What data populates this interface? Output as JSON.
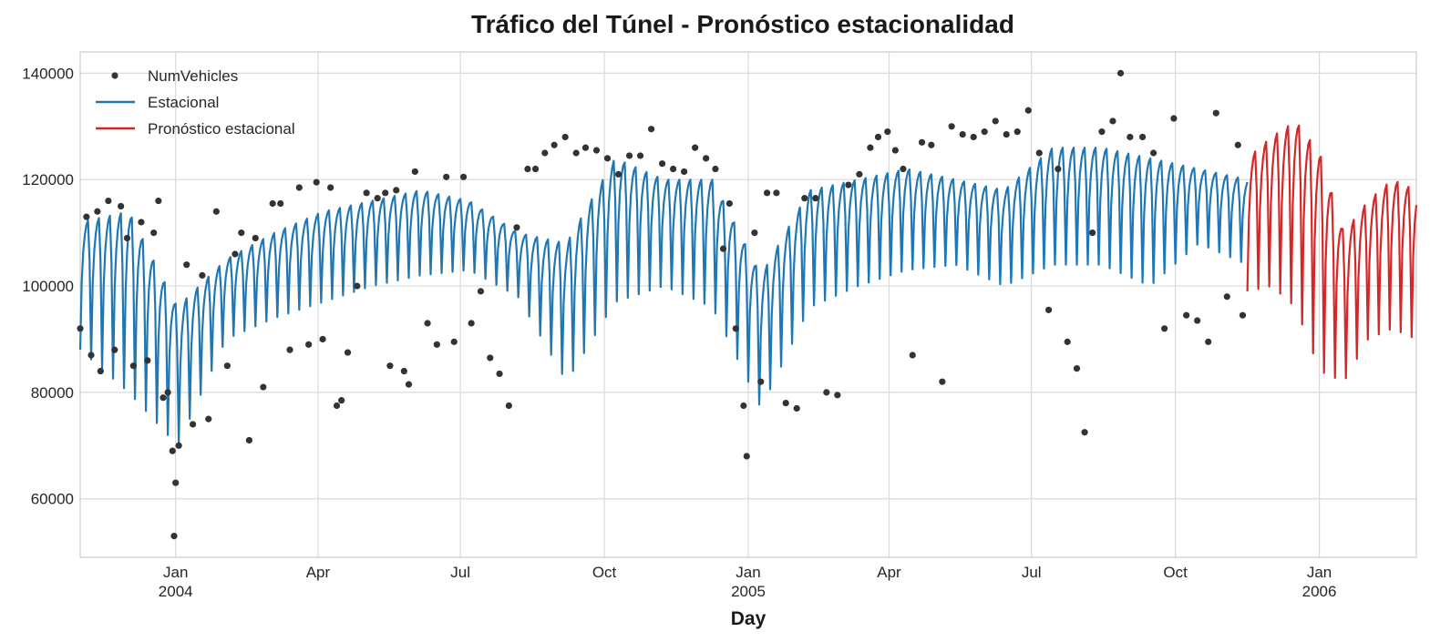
{
  "chart_data": {
    "type": "line",
    "title": "Tráfico del Túnel - Pronóstico estacionalidad",
    "xlabel": "Day",
    "ylabel": "",
    "xlim": [
      "2003-11-01",
      "2006-03-04"
    ],
    "ylim": [
      49000,
      144000
    ],
    "grid": true,
    "legend_position": "top-left",
    "x_ticks": [
      {
        "date": "2004-01-01",
        "label": "Jan",
        "year": "2004"
      },
      {
        "date": "2004-04-01",
        "label": "Apr",
        "year": ""
      },
      {
        "date": "2004-07-01",
        "label": "Jul",
        "year": ""
      },
      {
        "date": "2004-10-01",
        "label": "Oct",
        "year": ""
      },
      {
        "date": "2005-01-01",
        "label": "Jan",
        "year": "2005"
      },
      {
        "date": "2005-04-01",
        "label": "Apr",
        "year": ""
      },
      {
        "date": "2005-07-01",
        "label": "Jul",
        "year": ""
      },
      {
        "date": "2005-10-01",
        "label": "Oct",
        "year": ""
      },
      {
        "date": "2006-01-01",
        "label": "Jan",
        "year": "2006"
      }
    ],
    "y_ticks": [
      {
        "value": 60000,
        "label": "60000"
      },
      {
        "value": 80000,
        "label": "80000"
      },
      {
        "value": 100000,
        "label": "100000"
      },
      {
        "value": 120000,
        "label": "120000"
      },
      {
        "value": 140000,
        "label": "140000"
      }
    ],
    "series": [
      {
        "name": "NumVehicles",
        "kind": "points",
        "color": "#333333",
        "points": [
          [
            "2003-11-01",
            92000
          ],
          [
            "2003-11-05",
            113000
          ],
          [
            "2003-11-08",
            87000
          ],
          [
            "2003-11-12",
            114000
          ],
          [
            "2003-11-14",
            84000
          ],
          [
            "2003-11-19",
            116000
          ],
          [
            "2003-11-23",
            88000
          ],
          [
            "2003-11-27",
            115000
          ],
          [
            "2003-12-01",
            109000
          ],
          [
            "2003-12-05",
            85000
          ],
          [
            "2003-12-10",
            112000
          ],
          [
            "2003-12-14",
            86000
          ],
          [
            "2003-12-18",
            110000
          ],
          [
            "2003-12-21",
            116000
          ],
          [
            "2003-12-24",
            79000
          ],
          [
            "2003-12-27",
            80000
          ],
          [
            "2003-12-30",
            69000
          ],
          [
            "2003-12-31",
            53000
          ],
          [
            "2004-01-01",
            63000
          ],
          [
            "2004-01-03",
            70000
          ],
          [
            "2004-01-08",
            104000
          ],
          [
            "2004-01-12",
            74000
          ],
          [
            "2004-01-18",
            102000
          ],
          [
            "2004-01-22",
            75000
          ],
          [
            "2004-01-27",
            114000
          ],
          [
            "2004-02-03",
            85000
          ],
          [
            "2004-02-08",
            106000
          ],
          [
            "2004-02-12",
            110000
          ],
          [
            "2004-02-17",
            71000
          ],
          [
            "2004-02-21",
            109000
          ],
          [
            "2004-02-26",
            81000
          ],
          [
            "2004-03-03",
            115500
          ],
          [
            "2004-03-08",
            115500
          ],
          [
            "2004-03-14",
            88000
          ],
          [
            "2004-03-20",
            118500
          ],
          [
            "2004-03-26",
            89000
          ],
          [
            "2004-03-31",
            119500
          ],
          [
            "2004-04-04",
            90000
          ],
          [
            "2004-04-09",
            118500
          ],
          [
            "2004-04-13",
            77500
          ],
          [
            "2004-04-16",
            78500
          ],
          [
            "2004-04-20",
            87500
          ],
          [
            "2004-04-26",
            100000
          ],
          [
            "2004-05-02",
            117500
          ],
          [
            "2004-05-09",
            116500
          ],
          [
            "2004-05-14",
            117500
          ],
          [
            "2004-05-17",
            85000
          ],
          [
            "2004-05-21",
            118000
          ],
          [
            "2004-05-26",
            84000
          ],
          [
            "2004-05-29",
            81500
          ],
          [
            "2004-06-02",
            121500
          ],
          [
            "2004-06-10",
            93000
          ],
          [
            "2004-06-16",
            89000
          ],
          [
            "2004-06-22",
            120500
          ],
          [
            "2004-06-27",
            89500
          ],
          [
            "2004-07-03",
            120500
          ],
          [
            "2004-07-08",
            93000
          ],
          [
            "2004-07-14",
            99000
          ],
          [
            "2004-07-20",
            86500
          ],
          [
            "2004-07-26",
            83500
          ],
          [
            "2004-08-01",
            77500
          ],
          [
            "2004-08-06",
            111000
          ],
          [
            "2004-08-13",
            122000
          ],
          [
            "2004-08-18",
            122000
          ],
          [
            "2004-08-24",
            125000
          ],
          [
            "2004-08-30",
            126500
          ],
          [
            "2004-09-06",
            128000
          ],
          [
            "2004-09-13",
            125000
          ],
          [
            "2004-09-19",
            126000
          ],
          [
            "2004-09-26",
            125500
          ],
          [
            "2004-10-03",
            124000
          ],
          [
            "2004-10-10",
            121000
          ],
          [
            "2004-10-17",
            124500
          ],
          [
            "2004-10-24",
            124500
          ],
          [
            "2004-10-31",
            129500
          ],
          [
            "2004-11-07",
            123000
          ],
          [
            "2004-11-14",
            122000
          ],
          [
            "2004-11-21",
            121500
          ],
          [
            "2004-11-28",
            126000
          ],
          [
            "2004-12-05",
            124000
          ],
          [
            "2004-12-11",
            122000
          ],
          [
            "2004-12-16",
            107000
          ],
          [
            "2004-12-20",
            115500
          ],
          [
            "2004-12-24",
            92000
          ],
          [
            "2004-12-29",
            77500
          ],
          [
            "2004-12-31",
            68000
          ],
          [
            "2005-01-05",
            110000
          ],
          [
            "2005-01-09",
            82000
          ],
          [
            "2005-01-13",
            117500
          ],
          [
            "2005-01-19",
            117500
          ],
          [
            "2005-01-25",
            78000
          ],
          [
            "2005-02-01",
            77000
          ],
          [
            "2005-02-06",
            116500
          ],
          [
            "2005-02-13",
            116500
          ],
          [
            "2005-02-20",
            80000
          ],
          [
            "2005-02-27",
            79500
          ],
          [
            "2005-03-06",
            119000
          ],
          [
            "2005-03-13",
            121000
          ],
          [
            "2005-03-20",
            126000
          ],
          [
            "2005-03-25",
            128000
          ],
          [
            "2005-03-31",
            129000
          ],
          [
            "2005-04-05",
            125500
          ],
          [
            "2005-04-10",
            122000
          ],
          [
            "2005-04-16",
            87000
          ],
          [
            "2005-04-22",
            127000
          ],
          [
            "2005-04-28",
            126500
          ],
          [
            "2005-05-05",
            82000
          ],
          [
            "2005-05-11",
            130000
          ],
          [
            "2005-05-18",
            128500
          ],
          [
            "2005-05-25",
            128000
          ],
          [
            "2005-06-01",
            129000
          ],
          [
            "2005-06-08",
            131000
          ],
          [
            "2005-06-15",
            128500
          ],
          [
            "2005-06-22",
            129000
          ],
          [
            "2005-06-29",
            133000
          ],
          [
            "2005-07-06",
            125000
          ],
          [
            "2005-07-12",
            95500
          ],
          [
            "2005-07-18",
            122000
          ],
          [
            "2005-07-24",
            89500
          ],
          [
            "2005-07-30",
            84500
          ],
          [
            "2005-08-04",
            72500
          ],
          [
            "2005-08-09",
            110000
          ],
          [
            "2005-08-15",
            129000
          ],
          [
            "2005-08-22",
            131000
          ],
          [
            "2005-08-27",
            140000
          ],
          [
            "2005-09-02",
            128000
          ],
          [
            "2005-09-10",
            128000
          ],
          [
            "2005-09-17",
            125000
          ],
          [
            "2005-09-24",
            92000
          ],
          [
            "2005-09-30",
            131500
          ],
          [
            "2005-10-08",
            94500
          ],
          [
            "2005-10-15",
            93500
          ],
          [
            "2005-10-22",
            89500
          ],
          [
            "2005-10-27",
            132500
          ],
          [
            "2005-11-03",
            98000
          ],
          [
            "2005-11-10",
            126500
          ],
          [
            "2005-11-13",
            94500
          ]
        ]
      },
      {
        "name": "Estacional",
        "kind": "line",
        "color": "#1f77b4",
        "start_date": "2003-11-01",
        "end_date": "2005-11-16",
        "amplitude_low": [
          88000,
          80000,
          70000,
          90000,
          94000,
          97000,
          100000,
          102000,
          103000,
          98000,
          82000,
          97000,
          100000,
          96000,
          77000,
          96000,
          100000,
          103000,
          104000,
          100000,
          104000,
          104000,
          100000,
          108000,
          104000
        ],
        "amplitude_high": [
          112000,
          114000,
          96000,
          105000,
          110000,
          114000,
          116000,
          118000,
          116000,
          110000,
          108000,
          124000,
          120000,
          120000,
          102000,
          118000,
          120000,
          122000,
          120000,
          118000,
          126000,
          126000,
          124000,
          122000,
          120000
        ]
      },
      {
        "name": "Pronóstico estacional",
        "kind": "line",
        "color": "#d62728",
        "start_date": "2005-11-16",
        "end_date": "2006-03-04",
        "amplitude_low": [
          99000,
          100000,
          96000,
          84000,
          82000,
          90000,
          92000,
          90000
        ],
        "amplitude_high": [
          124000,
          128000,
          131000,
          125000,
          110000,
          116000,
          120000,
          118000
        ]
      }
    ]
  }
}
